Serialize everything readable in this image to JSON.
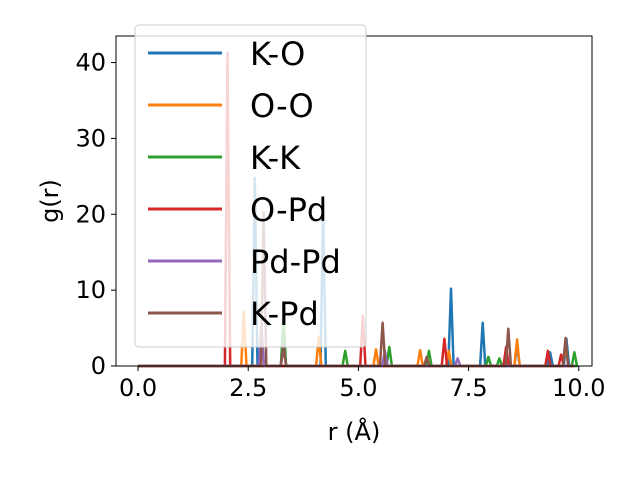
{
  "chart_data": {
    "type": "line",
    "title": "",
    "xlabel": "r (Å)",
    "ylabel": "g(r)",
    "xlim": [
      -0.5,
      10.3
    ],
    "ylim": [
      0,
      43.5
    ],
    "xticks": [
      0.0,
      2.5,
      5.0,
      7.5,
      10.0
    ],
    "xtick_labels": [
      "0.0",
      "2.5",
      "5.0",
      "7.5",
      "10.0"
    ],
    "yticks": [
      0,
      10,
      20,
      30,
      40
    ],
    "ytick_labels": [
      "0",
      "10",
      "20",
      "30",
      "40"
    ],
    "grid": false,
    "legend_position": "top-left",
    "series": [
      {
        "name": "K-O",
        "color": "#1f77b4",
        "peaks": [
          [
            2.65,
            24.8
          ],
          [
            4.2,
            20.5
          ],
          [
            7.1,
            10.2
          ],
          [
            7.82,
            5.7
          ],
          [
            8.6,
            2.8
          ],
          [
            9.35,
            1.8
          ],
          [
            9.72,
            3.6
          ]
        ]
      },
      {
        "name": "O-O",
        "color": "#ff7f0e",
        "peaks": [
          [
            2.4,
            7.2
          ],
          [
            4.1,
            3.8
          ],
          [
            5.4,
            2.2
          ],
          [
            6.4,
            2.1
          ],
          [
            7.05,
            2.0
          ],
          [
            8.6,
            3.5
          ],
          [
            9.7,
            3.0
          ]
        ]
      },
      {
        "name": "K-K",
        "color": "#2ca02c",
        "peaks": [
          [
            3.3,
            6.5
          ],
          [
            4.7,
            2.0
          ],
          [
            5.7,
            2.5
          ],
          [
            6.6,
            2.0
          ],
          [
            7.95,
            1.2
          ],
          [
            8.2,
            1.0
          ],
          [
            9.9,
            1.8
          ]
        ]
      },
      {
        "name": "O-Pd",
        "color": "#d62728",
        "peaks": [
          [
            2.03,
            41.3
          ],
          [
            5.1,
            6.6
          ],
          [
            6.95,
            3.6
          ],
          [
            8.35,
            2.5
          ],
          [
            9.3,
            2.0
          ],
          [
            9.6,
            1.5
          ]
        ]
      },
      {
        "name": "Pd-Pd",
        "color": "#9467bd",
        "peaks": [
          [
            2.8,
            5.2
          ],
          [
            3.3,
            2.8
          ],
          [
            5.6,
            2.0
          ],
          [
            7.25,
            1.0
          ]
        ]
      },
      {
        "name": "K-Pd",
        "color": "#8c564b",
        "peaks": [
          [
            2.85,
            20.2
          ],
          [
            3.3,
            2.6
          ],
          [
            5.55,
            5.7
          ],
          [
            6.55,
            1.2
          ],
          [
            8.4,
            4.9
          ],
          [
            9.7,
            3.7
          ]
        ]
      }
    ]
  }
}
